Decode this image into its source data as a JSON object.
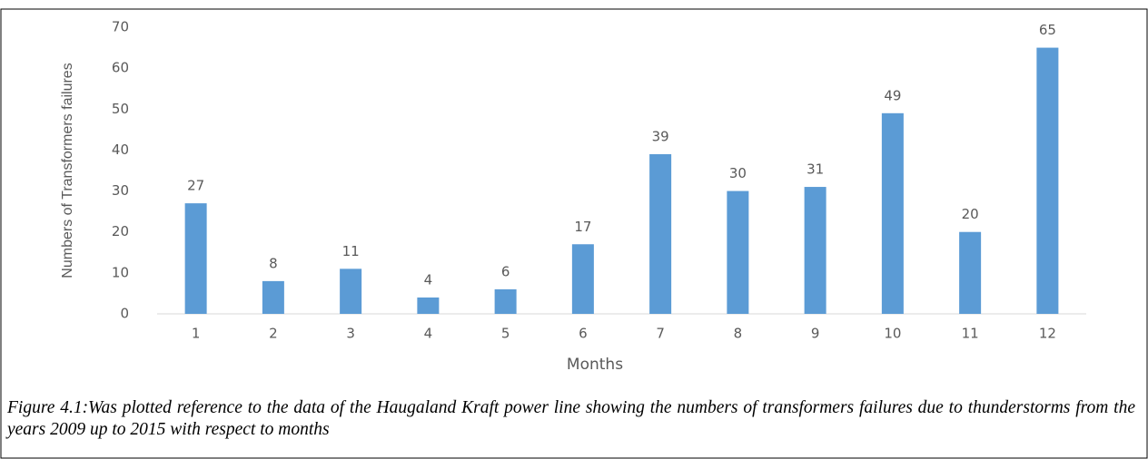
{
  "chart_data": {
    "type": "bar",
    "x_label": "Months",
    "y_label": "Numbers of Transformers failures",
    "categories": [
      "1",
      "2",
      "3",
      "4",
      "5",
      "6",
      "7",
      "8",
      "9",
      "10",
      "11",
      "12"
    ],
    "values": [
      27,
      8,
      11,
      4,
      6,
      17,
      39,
      30,
      31,
      49,
      20,
      65
    ],
    "color": "#5b9bd5",
    "ylim": [
      0,
      70
    ],
    "yticks": [
      0,
      10,
      20,
      30,
      40,
      50,
      60,
      70
    ],
    "grid": false
  },
  "caption": "Figure 4.1:Was plotted reference to the data of the Haugaland Kraft power line showing the numbers of transformers failures due to thunderstorms from the years 2009 up to 2015 with respect to months"
}
